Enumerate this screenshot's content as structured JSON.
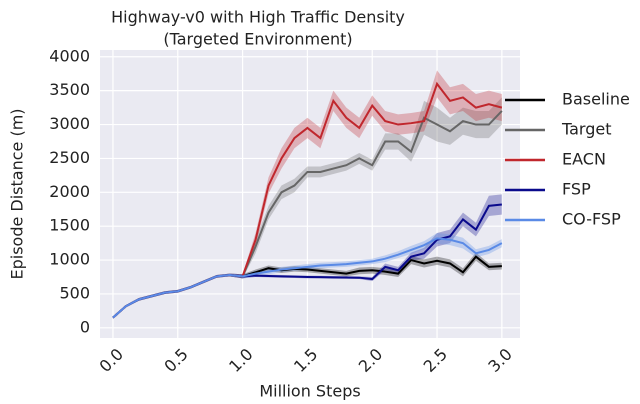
{
  "chart_data": {
    "type": "line",
    "title": [
      "Highway-v0 with High Traffic Density",
      "(Targeted Environment)"
    ],
    "xlabel": "Million Steps",
    "ylabel": "Episode Distance (m)",
    "x": [
      0.0,
      0.1,
      0.2,
      0.3,
      0.4,
      0.5,
      0.6,
      0.7,
      0.8,
      0.9,
      1.0,
      1.1,
      1.2,
      1.3,
      1.4,
      1.5,
      1.6,
      1.7,
      1.8,
      1.9,
      2.0,
      2.1,
      2.2,
      2.3,
      2.4,
      2.5,
      2.6,
      2.7,
      2.8,
      2.9,
      3.0
    ],
    "series": [
      {
        "name": "Baseline",
        "color": "#000000",
        "values": [
          150,
          320,
          420,
          470,
          520,
          540,
          600,
          680,
          760,
          780,
          760,
          820,
          880,
          850,
          870,
          860,
          840,
          820,
          800,
          840,
          850,
          830,
          800,
          1000,
          950,
          990,
          950,
          820,
          1050,
          900,
          910
        ],
        "errors": [
          10,
          15,
          20,
          20,
          20,
          20,
          20,
          20,
          20,
          20,
          30,
          40,
          40,
          40,
          40,
          40,
          40,
          40,
          40,
          50,
          50,
          50,
          50,
          60,
          60,
          60,
          60,
          60,
          60,
          50,
          50
        ]
      },
      {
        "name": "Target",
        "color": "#666666",
        "values": [
          150,
          320,
          420,
          470,
          520,
          540,
          600,
          680,
          760,
          780,
          760,
          1200,
          1700,
          2000,
          2100,
          2300,
          2300,
          2350,
          2400,
          2500,
          2400,
          2750,
          2750,
          2600,
          3100,
          3000,
          2900,
          3050,
          3000,
          3000,
          3200
        ],
        "errors": [
          10,
          15,
          20,
          20,
          20,
          20,
          20,
          20,
          20,
          20,
          30,
          100,
          100,
          100,
          100,
          80,
          80,
          80,
          80,
          80,
          80,
          120,
          120,
          150,
          250,
          250,
          200,
          200,
          200,
          200,
          200
        ]
      },
      {
        "name": "EACN",
        "color": "#c0272d",
        "values": [
          150,
          320,
          420,
          470,
          520,
          540,
          600,
          680,
          760,
          780,
          760,
          1300,
          2100,
          2500,
          2800,
          2950,
          2800,
          3350,
          3100,
          2950,
          3280,
          3050,
          3000,
          3020,
          3050,
          3600,
          3350,
          3400,
          3250,
          3300,
          3250
        ],
        "errors": [
          10,
          15,
          20,
          20,
          20,
          20,
          20,
          20,
          20,
          20,
          30,
          100,
          120,
          150,
          150,
          150,
          150,
          150,
          150,
          150,
          150,
          150,
          150,
          150,
          150,
          200,
          200,
          200,
          200,
          200,
          200
        ]
      },
      {
        "name": "FSP",
        "color": "#0a0a8c",
        "values": [
          150,
          320,
          420,
          470,
          520,
          540,
          600,
          680,
          760,
          780,
          760,
          770,
          765,
          760,
          755,
          750,
          748,
          745,
          742,
          740,
          720,
          900,
          850,
          1050,
          1100,
          1300,
          1350,
          1600,
          1450,
          1800,
          1820
        ],
        "errors": [
          10,
          15,
          20,
          20,
          20,
          20,
          20,
          20,
          20,
          20,
          30,
          20,
          20,
          20,
          20,
          20,
          20,
          20,
          20,
          20,
          30,
          50,
          50,
          60,
          80,
          100,
          100,
          100,
          100,
          150,
          150
        ]
      },
      {
        "name": "CO-FSP",
        "color": "#5a8ae6",
        "values": [
          150,
          320,
          420,
          470,
          520,
          540,
          600,
          680,
          760,
          780,
          760,
          800,
          830,
          860,
          880,
          900,
          920,
          930,
          940,
          960,
          980,
          1020,
          1080,
          1150,
          1220,
          1320,
          1300,
          1250,
          1100,
          1150,
          1250
        ],
        "errors": [
          10,
          15,
          20,
          20,
          20,
          20,
          20,
          20,
          20,
          20,
          30,
          40,
          40,
          40,
          40,
          40,
          40,
          40,
          40,
          40,
          40,
          50,
          50,
          60,
          60,
          80,
          80,
          80,
          60,
          60,
          60
        ]
      }
    ],
    "xlim": [
      -0.1,
      3.14
    ],
    "ylim": [
      -150,
      4100
    ],
    "xticks": [
      {
        "value": 0,
        "label": "0.0"
      },
      0.5,
      {
        "value": 1,
        "label": "1.0"
      },
      1.5,
      {
        "value": 2,
        "label": "2.0"
      },
      2.5,
      {
        "value": 3,
        "label": "3.0"
      }
    ],
    "yticks": [
      0,
      500,
      1000,
      1500,
      2000,
      2500,
      3000,
      3500,
      4000
    ],
    "grid": true,
    "legend": "outside right"
  }
}
